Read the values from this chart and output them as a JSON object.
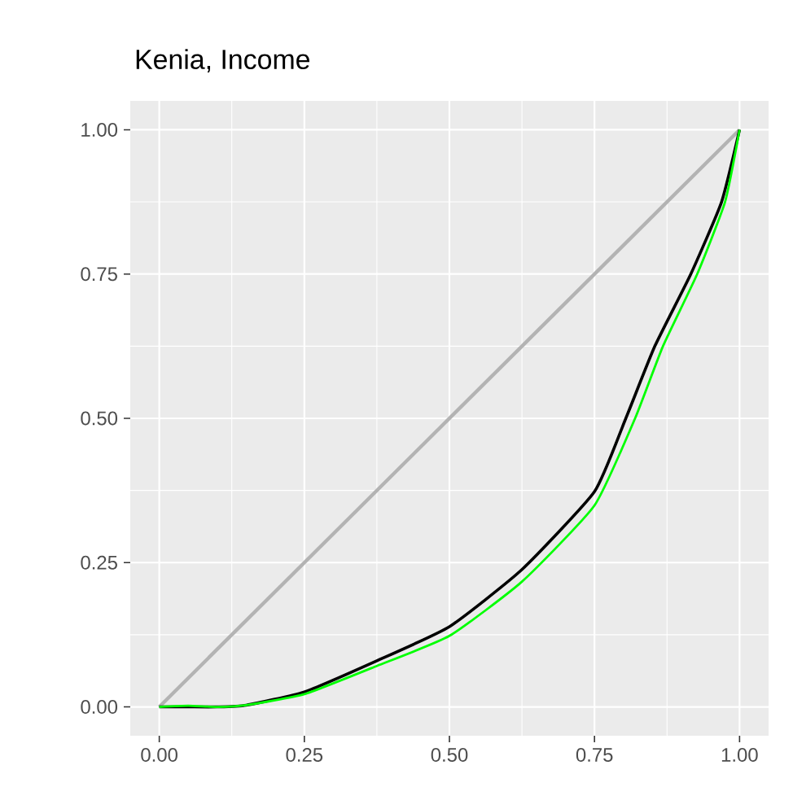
{
  "chart_data": {
    "type": "line",
    "title": "Kenia, Income",
    "xlim": [
      -0.05,
      1.05
    ],
    "ylim": [
      -0.05,
      1.05
    ],
    "xticks": [
      {
        "value": 0,
        "label": "0.00"
      },
      {
        "value": 0.25,
        "label": "0.25"
      },
      {
        "value": 0.5,
        "label": "0.50"
      },
      {
        "value": 0.75,
        "label": "0.75"
      },
      {
        "value": 1,
        "label": "1.00"
      }
    ],
    "yticks": [
      {
        "value": 0,
        "label": "0.00"
      },
      {
        "value": 0.25,
        "label": "0.25"
      },
      {
        "value": 0.5,
        "label": "0.50"
      },
      {
        "value": 0.75,
        "label": "0.75"
      },
      {
        "value": 1,
        "label": "1.00"
      }
    ],
    "grid": true,
    "line_style": "solid",
    "series": [
      {
        "color": "#b3b3b3",
        "x": [
          0,
          1
        ],
        "values": [
          0,
          1
        ]
      },
      {
        "color": "#000000",
        "x": [
          0,
          0.05,
          0.1,
          0.15,
          0.25,
          0.375,
          0.5,
          0.625,
          0.75,
          0.804,
          0.854,
          0.916,
          0.969,
          1.0
        ],
        "values": [
          0,
          0,
          0,
          0.003,
          0.026,
          0.08,
          0.139,
          0.238,
          0.373,
          0.5,
          0.625,
          0.75,
          0.875,
          1.0
        ]
      },
      {
        "color": "#00ff00",
        "x": [
          0,
          0.05,
          0.1,
          0.15,
          0.25,
          0.375,
          0.5,
          0.625,
          0.75,
          0.82,
          0.868,
          0.927,
          0.975,
          1.0
        ],
        "values": [
          0,
          0.002,
          0,
          0.003,
          0.022,
          0.071,
          0.123,
          0.217,
          0.349,
          0.5,
          0.625,
          0.75,
          0.875,
          1.0
        ]
      }
    ]
  }
}
